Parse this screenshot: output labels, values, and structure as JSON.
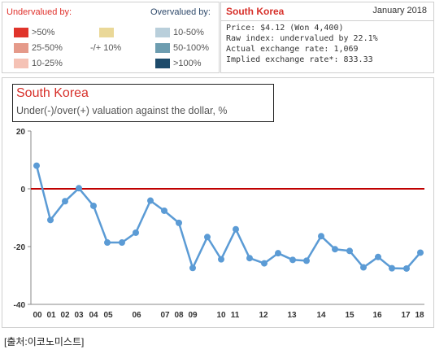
{
  "legend": {
    "undervalued_header": "Undervalued by:",
    "overvalued_header": "Overvalued by:",
    "items": [
      {
        "label": ">50%",
        "color": "#e0342b"
      },
      {
        "label": "25-50%",
        "color": "#e59a8a"
      },
      {
        "label": "10-25%",
        "color": "#f5c2b5"
      },
      {
        "label": "-/+ 10%",
        "color": "#ead898"
      },
      {
        "label": "10-50%",
        "color": "#b9cfdb"
      },
      {
        "label": "50-100%",
        "color": "#6d9db0"
      },
      {
        "label": ">100%",
        "color": "#1d4b6b"
      }
    ]
  },
  "info": {
    "country": "South Korea",
    "date": "January 2018",
    "price": "Price: $4.12 (Won 4,400)",
    "raw_index": "Raw index: undervalued by 22.1%",
    "actual_rate": "Actual exchange rate: 1,069",
    "implied_rate": "Implied exchange rate*: 833.33"
  },
  "chart_data": {
    "type": "line",
    "title": "South Korea",
    "subtitle": "Under(-)/over(+) valuation against the dollar, %",
    "ylim": [
      -40,
      20
    ],
    "yticks": [
      20,
      0,
      -20,
      -40
    ],
    "x_tick_labels": [
      "00",
      "01",
      "02",
      "03",
      "04",
      "05",
      "06",
      "07",
      "08",
      "09",
      "10",
      "11",
      "12",
      "13",
      "14",
      "15",
      "16",
      "17",
      "18"
    ],
    "series": [
      {
        "color": "#5b9bd5",
        "values": [
          8.0,
          -10.8,
          -4.3,
          0.2,
          -5.9,
          -18.6,
          -18.6,
          -15.2,
          -4.1,
          -7.6,
          -11.8,
          -27.4,
          -16.7,
          -24.4,
          -14.0,
          -24.0,
          -25.8,
          -22.3,
          -24.6,
          -24.9,
          -16.4,
          -20.9,
          -21.5,
          -27.2,
          -23.6,
          -27.5,
          -27.6,
          -22.1
        ],
        "x": [
          0,
          0.5,
          1.0,
          1.5,
          2.0,
          2.5,
          3.0,
          3.5,
          4.0,
          4.5,
          5.0,
          5.5,
          6.0,
          6.5,
          7.0,
          7.5,
          8.0,
          8.5,
          9.0,
          9.5,
          10.0,
          10.5,
          11.0,
          11.5,
          12.0,
          12.5,
          13.0,
          13.5
        ]
      }
    ],
    "zero_line_color": "#c00000",
    "grid": false
  },
  "source": "[출처:이코노미스트]"
}
